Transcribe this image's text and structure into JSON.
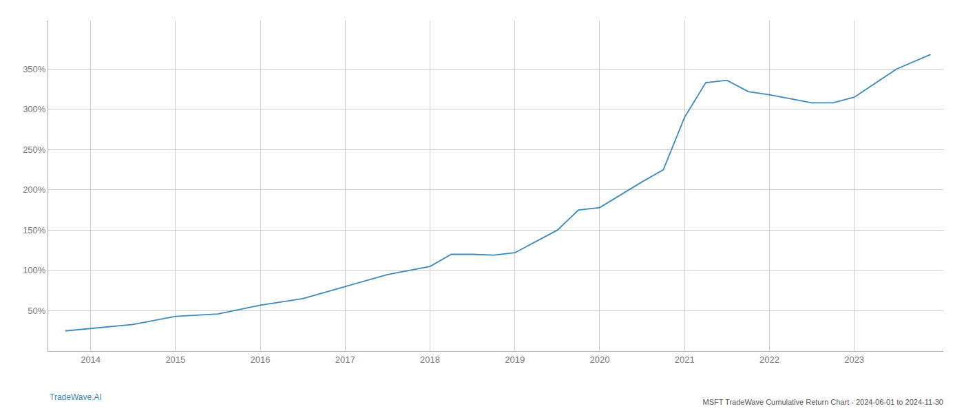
{
  "chart_data": {
    "type": "line",
    "title": "MSFT TradeWave Cumulative Return Chart - 2024-06-01 to 2024-11-30",
    "annotations": [
      "TradeWave.AI"
    ],
    "color": "#3a8abf",
    "x": [
      2013.7,
      2014.0,
      2014.5,
      2015.0,
      2015.5,
      2016.0,
      2016.5,
      2017.0,
      2017.5,
      2018.0,
      2018.25,
      2018.5,
      2018.75,
      2019.0,
      2019.5,
      2019.75,
      2020.0,
      2020.5,
      2020.75,
      2021.0,
      2021.25,
      2021.5,
      2021.75,
      2022.0,
      2022.5,
      2022.75,
      2023.0,
      2023.5,
      2023.9
    ],
    "values": [
      25,
      28,
      33,
      43,
      46,
      57,
      65,
      80,
      95,
      105,
      120,
      120,
      119,
      122,
      150,
      175,
      178,
      210,
      225,
      290,
      333,
      336,
      322,
      318,
      308,
      308,
      315,
      350,
      368
    ],
    "xlim": [
      2013.5,
      2024.05
    ],
    "xticks": [
      2014,
      2015,
      2016,
      2017,
      2018,
      2019,
      2020,
      2021,
      2022,
      2023
    ],
    "ylim": [
      0,
      410
    ],
    "yticks": [
      {
        "value": 50,
        "label": "50%"
      },
      {
        "value": 100,
        "label": "100%"
      },
      {
        "value": 150,
        "label": "150%"
      },
      {
        "value": 200,
        "label": "200%"
      },
      {
        "value": 250,
        "label": "250%"
      },
      {
        "value": 300,
        "label": "300%"
      },
      {
        "value": 350,
        "label": "350%"
      }
    ],
    "grid": true
  }
}
